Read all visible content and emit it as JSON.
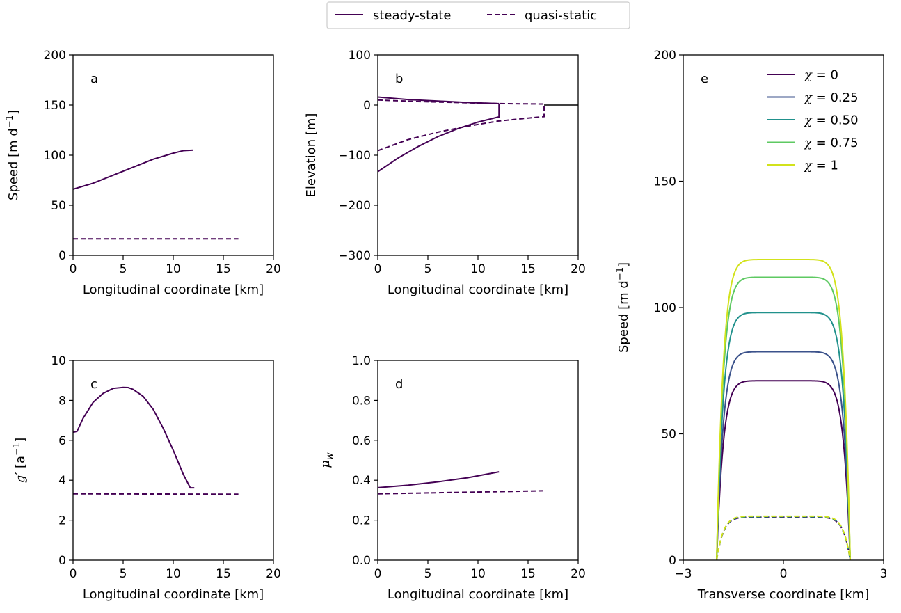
{
  "legend": {
    "items": [
      {
        "label": "steady-state",
        "style": "solid"
      },
      {
        "label": "quasi-static",
        "style": "dashed"
      }
    ]
  },
  "colors": {
    "series": "#440154",
    "chi_0": "#440154",
    "chi_025": "#3b528b",
    "chi_050": "#21918c",
    "chi_075": "#5ec962",
    "chi_1": "#d2e21b",
    "frame": "#000000"
  },
  "chart_data": [
    {
      "id": "a",
      "type": "line",
      "panel_label": "a",
      "xlabel": "Longitudinal coordinate [km]",
      "ylabel": "Speed [m d⁻¹]",
      "xlim": [
        0,
        20
      ],
      "ylim": [
        0,
        200
      ],
      "xticks": [
        0,
        5,
        10,
        15,
        20
      ],
      "yticks": [
        0,
        50,
        100,
        150,
        200
      ],
      "series": [
        {
          "style": "solid",
          "x": [
            0,
            2,
            4,
            6,
            8,
            10,
            11,
            12
          ],
          "y": [
            66,
            72,
            80,
            88,
            96,
            102,
            104.5,
            105
          ]
        },
        {
          "style": "dashed",
          "x": [
            0,
            16.5
          ],
          "y": [
            16.5,
            16.5
          ]
        }
      ]
    },
    {
      "id": "b",
      "type": "line",
      "panel_label": "b",
      "xlabel": "Longitudinal coordinate [km]",
      "ylabel": "Elevation [m]",
      "xlim": [
        0,
        20
      ],
      "ylim": [
        -300,
        100
      ],
      "xticks": [
        0,
        5,
        10,
        15,
        20
      ],
      "yticks": [
        -300,
        -200,
        -100,
        0,
        100
      ],
      "series": [
        {
          "style": "solid",
          "x": [
            0,
            3,
            6,
            9,
            12,
            12.1
          ],
          "y": [
            16,
            11,
            8,
            5,
            3,
            3
          ]
        },
        {
          "style": "solid",
          "x": [
            0,
            2,
            4,
            6,
            8,
            10,
            12,
            12.1,
            12.1
          ],
          "y": [
            -133,
            -106,
            -83,
            -63,
            -47,
            -34,
            -24,
            -24,
            3
          ]
        },
        {
          "style": "dashed",
          "x": [
            0,
            4,
            8,
            12,
            16.6
          ],
          "y": [
            10,
            7,
            5,
            3,
            2
          ]
        },
        {
          "style": "dashed",
          "x": [
            0,
            3,
            6,
            9,
            12,
            15,
            16.6,
            16.6
          ],
          "y": [
            -91,
            -69,
            -54,
            -42,
            -32,
            -26,
            -23,
            2
          ]
        },
        {
          "style": "solid",
          "color": "frame",
          "x": [
            16.6,
            20
          ],
          "y": [
            0,
            0
          ]
        }
      ]
    },
    {
      "id": "c",
      "type": "line",
      "panel_label": "c",
      "xlabel": "Longitudinal coordinate [km]",
      "ylabel": "g′ [a⁻¹]",
      "xlim": [
        0,
        20
      ],
      "ylim": [
        0,
        10
      ],
      "xticks": [
        0,
        5,
        10,
        15,
        20
      ],
      "yticks": [
        0,
        2,
        4,
        6,
        8,
        10
      ],
      "series": [
        {
          "style": "solid",
          "x": [
            0,
            0.4,
            1,
            2,
            3,
            4,
            5,
            5.5,
            6,
            7,
            8,
            9,
            10,
            11,
            11.7,
            12.1
          ],
          "y": [
            6.4,
            6.45,
            7.1,
            7.9,
            8.35,
            8.6,
            8.65,
            8.64,
            8.55,
            8.2,
            7.55,
            6.6,
            5.5,
            4.3,
            3.62,
            3.62
          ]
        },
        {
          "style": "dashed",
          "x": [
            0,
            16.5
          ],
          "y": [
            3.32,
            3.3
          ]
        }
      ]
    },
    {
      "id": "d",
      "type": "line",
      "panel_label": "d",
      "xlabel": "Longitudinal coordinate [km]",
      "ylabel": "μw",
      "xlim": [
        0,
        20
      ],
      "ylim": [
        0,
        1
      ],
      "xticks": [
        0,
        5,
        10,
        15,
        20
      ],
      "yticks": [
        "0.0",
        "0.2",
        "0.4",
        "0.6",
        "0.8",
        "1.0"
      ],
      "series": [
        {
          "style": "solid",
          "x": [
            0,
            3,
            6,
            9,
            12.1
          ],
          "y": [
            0.363,
            0.375,
            0.392,
            0.413,
            0.442
          ]
        },
        {
          "style": "dashed",
          "x": [
            0,
            16.5
          ],
          "y": [
            0.332,
            0.347
          ]
        }
      ]
    },
    {
      "id": "e",
      "type": "line",
      "panel_label": "e",
      "xlabel": "Transverse coordinate [km]",
      "ylabel": "Speed [m d⁻¹]",
      "xlim": [
        -3,
        3
      ],
      "ylim": [
        0,
        200
      ],
      "xticks": [
        -3,
        0,
        3
      ],
      "yticks": [
        0,
        50,
        100,
        150,
        200
      ],
      "half_width_km": 2.0,
      "series": [
        {
          "name": "χ = 0",
          "color": "chi_0",
          "style": "solid",
          "plateau": 71
        },
        {
          "name": "χ = 0.25",
          "color": "chi_025",
          "style": "solid",
          "plateau": 82.5
        },
        {
          "name": "χ = 0.50",
          "color": "chi_050",
          "style": "solid",
          "plateau": 98
        },
        {
          "name": "χ = 0.75",
          "color": "chi_075",
          "style": "solid",
          "plateau": 112
        },
        {
          "name": "χ = 1",
          "color": "chi_1",
          "style": "solid",
          "plateau": 119
        },
        {
          "color": "chi_0",
          "style": "dashed",
          "plateau": 17
        },
        {
          "color": "chi_050",
          "style": "dashed",
          "plateau": 17.2
        },
        {
          "color": "chi_1",
          "style": "dashed",
          "plateau": 17.4
        }
      ]
    }
  ]
}
